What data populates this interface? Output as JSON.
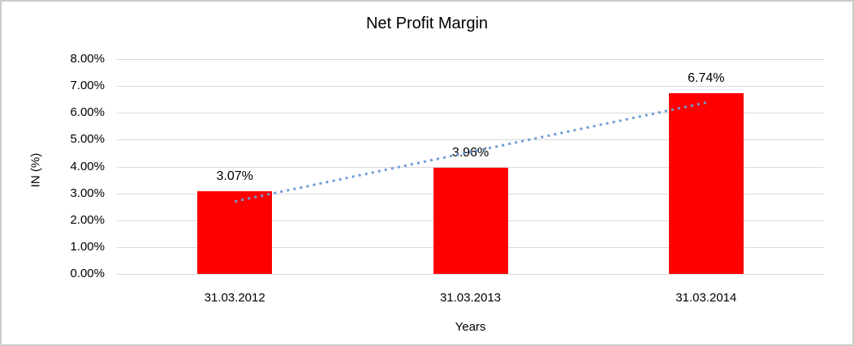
{
  "chart_data": {
    "type": "bar",
    "title": "Net Profit Margin",
    "xlabel": "Years",
    "ylabel": "IN (%)",
    "categories": [
      "31.03.2012",
      "31.03.2013",
      "31.03.2014"
    ],
    "values": [
      3.07,
      3.96,
      6.74
    ],
    "data_labels": [
      "3.07%",
      "3.96%",
      "6.74%"
    ],
    "y_ticks": [
      "0.00%",
      "1.00%",
      "2.00%",
      "3.00%",
      "4.00%",
      "5.00%",
      "6.00%",
      "7.00%",
      "8.00%"
    ],
    "ylim": [
      0,
      8
    ],
    "grid": true,
    "legend": false,
    "bar_color": "#fe0000",
    "gridline_color": "#d9d9d9",
    "text_color": "#000000",
    "border_color": "#cbcbcb",
    "trendline": {
      "type": "linear",
      "style": "dotted",
      "color": "#6e9cd7",
      "start": {
        "category_index": 0,
        "value": 2.7
      },
      "end": {
        "category_index": 2,
        "value": 6.38
      }
    }
  }
}
